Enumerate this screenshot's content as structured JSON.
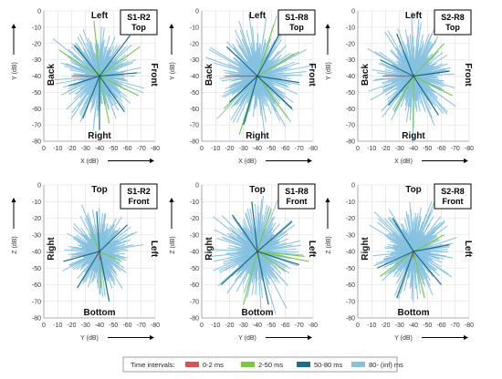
{
  "chart_data": [
    {
      "type": "scatter",
      "subtype": "directional-energy-starburst",
      "panel_label_line1": "S1-R2",
      "panel_label_line2": "Top",
      "xlabel": "X (dB)",
      "ylabel": "Y (dB)",
      "xlim": [
        0,
        -40,
        -80
      ],
      "ylim": [
        0,
        -80
      ],
      "x_ticks": [
        "0",
        "-10",
        "-20",
        "-30",
        "-40",
        "-50",
        "-60",
        "-70",
        "-80"
      ],
      "y_ticks": [
        "0",
        "-10",
        "-20",
        "-30",
        "-40",
        "-50",
        "-60",
        "-70",
        "-80"
      ],
      "direction_labels": {
        "top": "Left",
        "bottom": "Right",
        "left": "Back",
        "right": "Front"
      },
      "grid": true,
      "series": [
        {
          "name": "0-2 ms",
          "color": "#d9534f",
          "points": [
            [
              -20,
              -40
            ]
          ]
        },
        {
          "name": "2-50 ms",
          "color": "#77c943",
          "points": [
            [
              -11,
              -24
            ],
            [
              -69,
              -22
            ],
            [
              -68,
              -52
            ],
            [
              -36,
              -6
            ],
            [
              -47,
              -69
            ]
          ]
        },
        {
          "name": "50-80 ms",
          "color": "#1a6d8c",
          "points": [
            [
              -18,
              -46
            ],
            [
              -67,
              -38
            ],
            [
              -58,
              -62
            ],
            [
              -22,
              -21
            ],
            [
              -40,
              -73
            ],
            [
              -28,
              -66
            ],
            [
              -62,
              -15
            ]
          ]
        },
        {
          "name": "80- (inf) ms",
          "color": "#86c1e0",
          "spread": 26,
          "seed": 11
        }
      ]
    },
    {
      "type": "scatter",
      "subtype": "directional-energy-starburst",
      "panel_label_line1": "S1-R8",
      "panel_label_line2": "Top",
      "xlabel": "X (dB)",
      "ylabel": "Y (dB)",
      "xlim": [
        0,
        -40,
        -80
      ],
      "ylim": [
        0,
        -80
      ],
      "x_ticks": [
        "0",
        "-10",
        "-20",
        "-30",
        "-40",
        "-50",
        "-60",
        "-70",
        "-80"
      ],
      "y_ticks": [
        "0",
        "-10",
        "-20",
        "-30",
        "-40",
        "-50",
        "-60",
        "-70",
        "-80"
      ],
      "direction_labels": {
        "top": "Left",
        "bottom": "Right",
        "left": "Back",
        "right": "Front"
      },
      "grid": true,
      "series": [
        {
          "name": "0-2 ms",
          "color": "#d9534f",
          "points": [
            [
              -17,
              -40
            ]
          ]
        },
        {
          "name": "2-50 ms",
          "color": "#77c943",
          "points": [
            [
              -27,
              -76
            ],
            [
              -70,
              -25
            ],
            [
              -62,
              -66
            ],
            [
              -52,
              -8
            ],
            [
              -16,
              -60
            ]
          ]
        },
        {
          "name": "50-80 ms",
          "color": "#1a6d8c",
          "points": [
            [
              -18,
              -22
            ],
            [
              -70,
              -44
            ],
            [
              -30,
              -70
            ],
            [
              -56,
              -14
            ],
            [
              -20,
              -56
            ],
            [
              -65,
              -60
            ]
          ]
        },
        {
          "name": "80- (inf) ms",
          "color": "#86c1e0",
          "spread": 30,
          "seed": 23
        }
      ]
    },
    {
      "type": "scatter",
      "subtype": "directional-energy-starburst",
      "panel_label_line1": "S2-R8",
      "panel_label_line2": "Top",
      "xlabel": "X (dB)",
      "ylabel": "Y (dB)",
      "xlim": [
        0,
        -40,
        -80
      ],
      "ylim": [
        0,
        -80
      ],
      "x_ticks": [
        "0",
        "-10",
        "-20",
        "-30",
        "-40",
        "-50",
        "-60",
        "-70",
        "-80"
      ],
      "y_ticks": [
        "0",
        "-10",
        "-20",
        "-30",
        "-40",
        "-50",
        "-60",
        "-70",
        "-80"
      ],
      "direction_labels": {
        "top": "Left",
        "bottom": "Right",
        "left": "Back",
        "right": "Front"
      },
      "grid": true,
      "series": [
        {
          "name": "0-2 ms",
          "color": "#d9534f",
          "points": [
            [
              -18,
              -40
            ]
          ]
        },
        {
          "name": "2-50 ms",
          "color": "#77c943",
          "points": [
            [
              -62,
              -20
            ],
            [
              -68,
              -52
            ],
            [
              -26,
              -62
            ],
            [
              -40,
              -72
            ]
          ]
        },
        {
          "name": "50-80 ms",
          "color": "#1a6d8c",
          "points": [
            [
              -66,
              -37
            ],
            [
              -16,
              -30
            ],
            [
              -58,
              -64
            ],
            [
              -28,
              -14
            ],
            [
              -22,
              -58
            ]
          ]
        },
        {
          "name": "80- (inf) ms",
          "color": "#86c1e0",
          "spread": 27,
          "seed": 37
        }
      ]
    },
    {
      "type": "scatter",
      "subtype": "directional-energy-starburst",
      "panel_label_line1": "S1-R2",
      "panel_label_line2": "Front",
      "xlabel": "Y (dB)",
      "ylabel": "Z (dB)",
      "xlim": [
        0,
        -40,
        -80
      ],
      "ylim": [
        0,
        -80
      ],
      "x_ticks": [
        "0",
        "-10",
        "-20",
        "-30",
        "-40",
        "-50",
        "-60",
        "-70",
        "-80"
      ],
      "y_ticks": [
        "0",
        "-10",
        "-20",
        "-30",
        "-40",
        "-50",
        "-60",
        "-70",
        "-80"
      ],
      "direction_labels": {
        "top": "Top",
        "bottom": "Bottom",
        "left": "Right",
        "right": "Left"
      },
      "grid": true,
      "series": [
        {
          "name": "0-2 ms",
          "color": "#d9534f",
          "points": [
            [
              -40,
              -45
            ]
          ]
        },
        {
          "name": "2-50 ms",
          "color": "#77c943",
          "points": [
            [
              -41,
              -62
            ],
            [
              -44,
              -58
            ],
            [
              -34,
              -28
            ],
            [
              -56,
              -46
            ]
          ]
        },
        {
          "name": "50-80 ms",
          "color": "#1a6d8c",
          "points": [
            [
              -14,
              -46
            ],
            [
              -47,
              -70
            ],
            [
              -60,
              -24
            ],
            [
              -24,
              -62
            ],
            [
              -38,
              -16
            ]
          ]
        },
        {
          "name": "80- (inf) ms",
          "color": "#86c1e0",
          "spread": 24,
          "seed": 53
        }
      ]
    },
    {
      "type": "scatter",
      "subtype": "directional-energy-starburst",
      "panel_label_line1": "S1-R8",
      "panel_label_line2": "Front",
      "xlabel": "Y (dB)",
      "ylabel": "Z (dB)",
      "xlim": [
        0,
        -40,
        -80
      ],
      "ylim": [
        0,
        -80
      ],
      "x_ticks": [
        "0",
        "-10",
        "-20",
        "-30",
        "-40",
        "-50",
        "-60",
        "-70",
        "-80"
      ],
      "y_ticks": [
        "0",
        "-10",
        "-20",
        "-30",
        "-40",
        "-50",
        "-60",
        "-70",
        "-80"
      ],
      "direction_labels": {
        "top": "Top",
        "bottom": "Bottom",
        "left": "Right",
        "right": "Left"
      },
      "grid": true,
      "series": [
        {
          "name": "0-2 ms",
          "color": "#d9534f",
          "points": [
            [
              -40,
              -38
            ]
          ]
        },
        {
          "name": "2-50 ms",
          "color": "#77c943",
          "points": [
            [
              -77,
              -46
            ],
            [
              -74,
              -43
            ],
            [
              -60,
              -52
            ],
            [
              -30,
              -72
            ],
            [
              -50,
              -14
            ]
          ]
        },
        {
          "name": "50-80 ms",
          "color": "#1a6d8c",
          "points": [
            [
              -70,
              -48
            ],
            [
              -14,
              -60
            ],
            [
              -48,
              -72
            ],
            [
              -22,
              -18
            ],
            [
              -65,
              -22
            ],
            [
              -36,
              -10
            ]
          ]
        },
        {
          "name": "80- (inf) ms",
          "color": "#86c1e0",
          "spread": 28,
          "seed": 71
        }
      ]
    },
    {
      "type": "scatter",
      "subtype": "directional-energy-starburst",
      "panel_label_line1": "S2-R8",
      "panel_label_line2": "Front",
      "xlabel": "Y (dB)",
      "ylabel": "Z (dB)",
      "xlim": [
        0,
        -40,
        -80
      ],
      "ylim": [
        0,
        -80
      ],
      "x_ticks": [
        "0",
        "-10",
        "-20",
        "-30",
        "-40",
        "-50",
        "-60",
        "-70",
        "-80"
      ],
      "y_ticks": [
        "0",
        "-10",
        "-20",
        "-30",
        "-40",
        "-50",
        "-60",
        "-70",
        "-80"
      ],
      "direction_labels": {
        "top": "Top",
        "bottom": "Bottom",
        "left": "Right",
        "right": "Left"
      },
      "grid": true,
      "series": [
        {
          "name": "0-2 ms",
          "color": "#d9534f",
          "points": [
            [
              -40,
              -44
            ]
          ]
        },
        {
          "name": "2-50 ms",
          "color": "#77c943",
          "points": [
            [
              -16,
              -55
            ],
            [
              -62,
              -30
            ],
            [
              -48,
              -68
            ]
          ]
        },
        {
          "name": "50-80 ms",
          "color": "#1a6d8c",
          "points": [
            [
              -14,
              -50
            ],
            [
              -60,
              -60
            ],
            [
              -28,
              -68
            ],
            [
              -66,
              -36
            ],
            [
              -25,
              -20
            ]
          ]
        },
        {
          "name": "80- (inf) ms",
          "color": "#86c1e0",
          "spread": 26,
          "seed": 89
        }
      ]
    }
  ],
  "legend": {
    "title": "Time intervals:",
    "items": [
      {
        "label": "0-2 ms",
        "color": "#d9534f"
      },
      {
        "label": "2-50 ms",
        "color": "#77c943"
      },
      {
        "label": "50-80 ms",
        "color": "#1a6d8c"
      },
      {
        "label": "80- (inf) ms",
        "color": "#86c1e0"
      }
    ]
  }
}
